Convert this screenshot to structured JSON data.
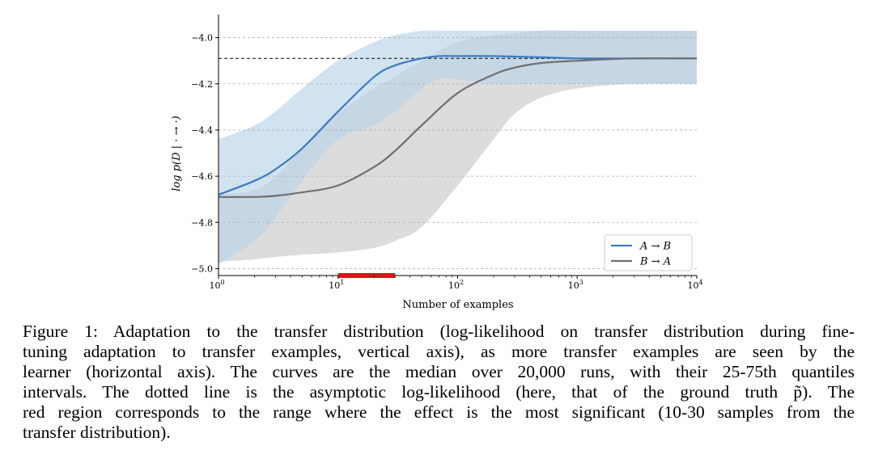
{
  "chart_data": {
    "type": "line",
    "xscale": "log",
    "xlim": [
      1,
      10000
    ],
    "ylim": [
      -5.03,
      -3.9
    ],
    "xlabel": "Number of examples",
    "ylabel": "log p(D | · → ·)",
    "xticks": [
      {
        "value": 1,
        "base": "10",
        "exp": "0"
      },
      {
        "value": 10,
        "base": "10",
        "exp": "1"
      },
      {
        "value": 100,
        "base": "10",
        "exp": "2"
      },
      {
        "value": 1000,
        "base": "10",
        "exp": "3"
      },
      {
        "value": 10000,
        "base": "10",
        "exp": "4"
      }
    ],
    "yticks": [
      {
        "value": -4.0,
        "label": "−4.0"
      },
      {
        "value": -4.2,
        "label": "−4.2"
      },
      {
        "value": -4.4,
        "label": "−4.4"
      },
      {
        "value": -4.6,
        "label": "−4.6"
      },
      {
        "value": -4.8,
        "label": "−4.8"
      },
      {
        "value": -5.0,
        "label": "−5.0"
      }
    ],
    "grid": "horizontal dashed",
    "legend_position": "lower-right",
    "asymptote": -4.09,
    "red_region": [
      10,
      30
    ],
    "series": [
      {
        "name": "A → B",
        "color": "#3a7bbf",
        "band_color": "#b9d3ea",
        "x": [
          1,
          2,
          3,
          5,
          10,
          20,
          30,
          50,
          70,
          100,
          200,
          500,
          1000,
          3000,
          10000
        ],
        "median": [
          -4.68,
          -4.62,
          -4.57,
          -4.48,
          -4.32,
          -4.17,
          -4.12,
          -4.09,
          -4.08,
          -4.08,
          -4.08,
          -4.085,
          -4.09,
          -4.09,
          -4.09
        ],
        "q25": [
          -4.98,
          -4.88,
          -4.78,
          -4.62,
          -4.44,
          -4.38,
          -4.32,
          -4.22,
          -4.18,
          -4.18,
          -4.2,
          -4.2,
          -4.2,
          -4.2,
          -4.2
        ],
        "q75": [
          -4.44,
          -4.38,
          -4.32,
          -4.22,
          -4.1,
          -4.02,
          -3.99,
          -3.97,
          -3.97,
          -3.97,
          -3.97,
          -3.97,
          -3.97,
          -3.97,
          -3.97
        ]
      },
      {
        "name": "B → A",
        "color": "#707070",
        "band_color": "#d0d0d0",
        "x": [
          1,
          2,
          3,
          5,
          10,
          20,
          30,
          50,
          100,
          200,
          300,
          500,
          1000,
          3000,
          10000
        ],
        "median": [
          -4.69,
          -4.69,
          -4.685,
          -4.67,
          -4.64,
          -4.56,
          -4.49,
          -4.38,
          -4.24,
          -4.16,
          -4.13,
          -4.11,
          -4.1,
          -4.09,
          -4.09
        ],
        "q25": [
          -4.97,
          -4.96,
          -4.95,
          -4.94,
          -4.93,
          -4.91,
          -4.88,
          -4.82,
          -4.64,
          -4.44,
          -4.33,
          -4.26,
          -4.22,
          -4.2,
          -4.2
        ],
        "q75": [
          -4.68,
          -4.66,
          -4.6,
          -4.48,
          -4.33,
          -4.22,
          -4.17,
          -4.1,
          -4.02,
          -3.99,
          -3.98,
          -3.97,
          -3.97,
          -3.97,
          -3.97
        ]
      }
    ]
  },
  "caption": {
    "lines": [
      "Figure 1: Adaptation to the transfer distribution (log-likelihood on transfer distribution during fine-",
      "tuning adaptation to transfer examples, vertical axis), as more transfer examples are seen by the",
      "learner (horizontal axis). The curves are the median over 20,000 runs, with their 25-75th quantiles",
      "intervals.  The dotted line is the asymptotic log-likelihood (here, that of the ground truth p̃).  The",
      "red region corresponds to the range where the effect is the most significant (10-30 samples from the",
      "transfer distribution)."
    ]
  }
}
